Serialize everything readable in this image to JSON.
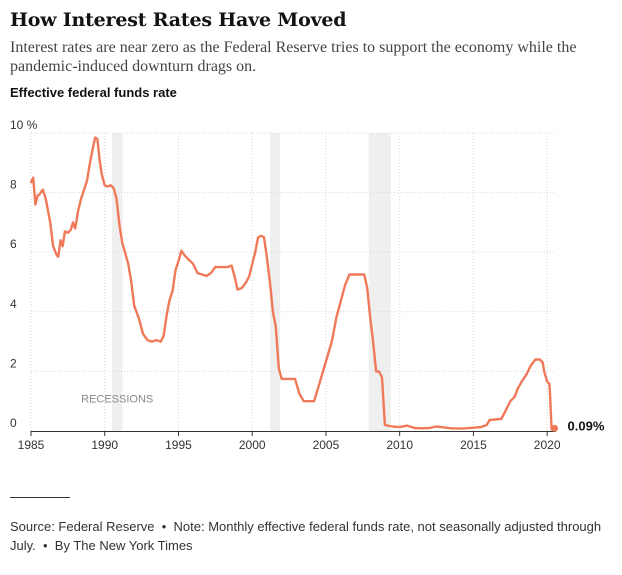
{
  "title": "How Interest Rates Have Moved",
  "subtitle": "Interest rates are near zero as the Federal Reserve tries to support the economy while the pandemic-induced downturn drags on.",
  "chart_label": "Effective federal funds rate",
  "footer": {
    "source": "Source: Federal Reserve",
    "note": "Note: Monthly effective federal funds rate, not seasonally adjusted through July.",
    "byline": "By The New York Times"
  },
  "colors": {
    "line": "#ef7959",
    "recession": "#efefef",
    "grid": "#d7d7d7",
    "axis": "#333333",
    "text": "#333333",
    "annotation": "#888888"
  },
  "chart_data": {
    "type": "line",
    "title": "Effective federal funds rate",
    "xlabel": "",
    "ylabel": "",
    "xlim": [
      1985,
      2020.6
    ],
    "ylim": [
      0,
      10
    ],
    "x_ticks": [
      1985,
      1990,
      1995,
      2000,
      2005,
      2010,
      2015,
      2020
    ],
    "x_tick_labels": [
      "1985",
      "1990",
      "1995",
      "2000",
      "2005",
      "2010",
      "2015",
      "2020"
    ],
    "y_ticks": [
      0,
      2,
      4,
      6,
      8,
      10
    ],
    "y_tick_labels": [
      "0",
      "2",
      "4",
      "6",
      "8",
      "10 %"
    ],
    "grid": true,
    "recession_label": "RECESSIONS",
    "recessions": [
      [
        1990.5,
        1991.2
      ],
      [
        2001.2,
        2001.9
      ],
      [
        2007.9,
        2009.4
      ]
    ],
    "end_label": "0.09%",
    "end_point": [
      2020.5,
      0.09
    ],
    "series": [
      {
        "name": "Effective federal funds rate",
        "x": [
          1985.0,
          1985.15,
          1985.3,
          1985.45,
          1985.6,
          1985.8,
          1986.0,
          1986.3,
          1986.5,
          1986.75,
          1986.85,
          1987.0,
          1987.15,
          1987.3,
          1987.5,
          1987.7,
          1987.85,
          1988.0,
          1988.2,
          1988.4,
          1988.6,
          1988.8,
          1989.0,
          1989.2,
          1989.35,
          1989.5,
          1989.65,
          1989.8,
          1990.0,
          1990.2,
          1990.4,
          1990.6,
          1990.8,
          1991.0,
          1991.2,
          1991.4,
          1991.6,
          1991.8,
          1992.0,
          1992.3,
          1992.6,
          1992.9,
          1993.2,
          1993.5,
          1993.8,
          1994.0,
          1994.2,
          1994.4,
          1994.6,
          1994.8,
          1995.0,
          1995.2,
          1995.4,
          1995.6,
          1995.8,
          1996.0,
          1996.3,
          1996.6,
          1996.9,
          1997.2,
          1997.5,
          1997.8,
          1998.0,
          1998.3,
          1998.6,
          1998.8,
          1999.0,
          1999.3,
          1999.6,
          1999.8,
          2000.0,
          2000.2,
          2000.4,
          2000.6,
          2000.8,
          2001.0,
          2001.2,
          2001.4,
          2001.6,
          2001.8,
          2002.0,
          2002.3,
          2002.6,
          2002.9,
          2003.2,
          2003.5,
          2003.8,
          2004.2,
          2004.5,
          2004.8,
          2005.1,
          2005.4,
          2005.7,
          2006.0,
          2006.3,
          2006.6,
          2007.0,
          2007.4,
          2007.6,
          2007.8,
          2008.0,
          2008.2,
          2008.4,
          2008.6,
          2008.8,
          2009.0,
          2009.5,
          2010.0,
          2010.5,
          2011.0,
          2011.5,
          2012.0,
          2012.5,
          2013.0,
          2013.5,
          2014.0,
          2014.5,
          2015.0,
          2015.5,
          2015.9,
          2016.1,
          2016.5,
          2016.9,
          2017.2,
          2017.5,
          2017.8,
          2018.0,
          2018.3,
          2018.6,
          2018.9,
          2019.2,
          2019.5,
          2019.7,
          2019.8,
          2020.0,
          2020.15,
          2020.2,
          2020.25,
          2020.3,
          2020.5
        ],
        "values": [
          8.35,
          8.5,
          7.6,
          7.9,
          7.95,
          8.1,
          7.8,
          7.0,
          6.2,
          5.9,
          5.85,
          6.4,
          6.2,
          6.7,
          6.65,
          6.75,
          7.0,
          6.8,
          7.4,
          7.8,
          8.1,
          8.4,
          9.0,
          9.5,
          9.85,
          9.8,
          9.1,
          8.6,
          8.25,
          8.2,
          8.25,
          8.15,
          7.8,
          6.9,
          6.3,
          5.95,
          5.6,
          5.0,
          4.2,
          3.8,
          3.25,
          3.05,
          3.0,
          3.05,
          3.0,
          3.2,
          3.9,
          4.4,
          4.7,
          5.4,
          5.7,
          6.05,
          5.9,
          5.8,
          5.7,
          5.6,
          5.3,
          5.25,
          5.2,
          5.3,
          5.5,
          5.5,
          5.5,
          5.5,
          5.55,
          5.2,
          4.75,
          4.8,
          5.0,
          5.2,
          5.6,
          6.0,
          6.5,
          6.55,
          6.5,
          5.8,
          5.0,
          4.0,
          3.5,
          2.1,
          1.75,
          1.75,
          1.75,
          1.75,
          1.25,
          1.0,
          1.0,
          1.0,
          1.5,
          2.0,
          2.5,
          3.0,
          3.8,
          4.35,
          4.9,
          5.25,
          5.25,
          5.25,
          5.25,
          4.8,
          3.8,
          3.0,
          2.0,
          2.0,
          1.8,
          0.2,
          0.15,
          0.13,
          0.18,
          0.1,
          0.09,
          0.1,
          0.15,
          0.12,
          0.09,
          0.08,
          0.09,
          0.11,
          0.13,
          0.2,
          0.37,
          0.39,
          0.41,
          0.7,
          1.0,
          1.15,
          1.42,
          1.68,
          1.9,
          2.2,
          2.4,
          2.4,
          2.3,
          2.0,
          1.65,
          1.58,
          1.2,
          0.65,
          0.05,
          0.09
        ]
      }
    ]
  }
}
